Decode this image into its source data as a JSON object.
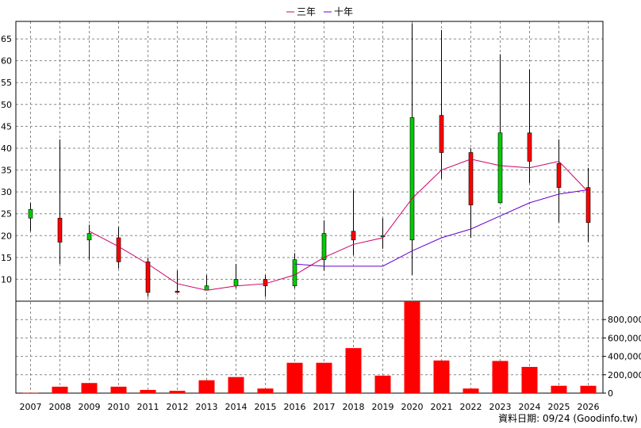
{
  "legend": [
    {
      "label": "三年",
      "color": "#cc0066"
    },
    {
      "label": "十年",
      "color": "#6600cc"
    }
  ],
  "footer": "資料日期: 09/24 (Goodinfo.tw)",
  "colors": {
    "up": "#00cc00",
    "down": "#ff0000",
    "volume": "#ff0000",
    "grid": "#888888"
  },
  "chart_data": {
    "type": "candlestick+bar",
    "categories": [
      "2007",
      "2008",
      "2009",
      "2010",
      "2011",
      "2012",
      "2013",
      "2014",
      "2015",
      "2016",
      "2017",
      "2018",
      "2019",
      "2020",
      "2021",
      "2022",
      "2023",
      "2024",
      "2025",
      "2026"
    ],
    "price_axis": {
      "ylim": [
        5,
        69
      ],
      "ticks": [
        10,
        15,
        20,
        25,
        30,
        35,
        40,
        45,
        50,
        55,
        60,
        65
      ],
      "grid": true
    },
    "volume_axis": {
      "ylim": [
        0,
        1000000
      ],
      "ticks": [
        0,
        200000,
        400000,
        600000,
        800000
      ],
      "tick_labels": [
        "0",
        "200,000",
        "400,000",
        "600,000",
        "800,000"
      ]
    },
    "candles": [
      {
        "year": "2007",
        "open": 24,
        "close": 26,
        "high": 27.5,
        "low": 21
      },
      {
        "year": "2008",
        "open": 24,
        "close": 18.5,
        "high": 42,
        "low": 13.5
      },
      {
        "year": "2009",
        "open": 19,
        "close": 20.5,
        "high": 22.5,
        "low": 14.5
      },
      {
        "year": "2010",
        "open": 19.5,
        "close": 14,
        "high": 22,
        "low": 12.5
      },
      {
        "year": "2011",
        "open": 14,
        "close": 7,
        "high": 15,
        "low": 6
      },
      {
        "year": "2012",
        "open": 7.3,
        "close": 7,
        "high": 12,
        "low": 7
      },
      {
        "year": "2013",
        "open": 7.5,
        "close": 8.5,
        "high": 11,
        "low": 7.5
      },
      {
        "year": "2014",
        "open": 8.5,
        "close": 10,
        "high": 13.5,
        "low": 8
      },
      {
        "year": "2015",
        "open": 10,
        "close": 8.5,
        "high": 11,
        "low": 6
      },
      {
        "year": "2016",
        "open": 8.5,
        "close": 14.5,
        "high": 16,
        "low": 8
      },
      {
        "year": "2017",
        "open": 14.5,
        "close": 20.5,
        "high": 23.5,
        "low": 12
      },
      {
        "year": "2018",
        "open": 21,
        "close": 19,
        "high": 30.5,
        "low": 15.5
      },
      {
        "year": "2019",
        "open": 20,
        "close": 20,
        "high": 24,
        "low": 17
      },
      {
        "year": "2020",
        "open": 19,
        "close": 47,
        "high": 68.5,
        "low": 11
      },
      {
        "year": "2021",
        "open": 47.5,
        "close": 39,
        "high": 67,
        "low": 33
      },
      {
        "year": "2022",
        "open": 39,
        "close": 27,
        "high": 40,
        "low": 19.5
      },
      {
        "year": "2023",
        "open": 27.5,
        "close": 43.5,
        "high": 61.5,
        "low": 27.5
      },
      {
        "year": "2024",
        "open": 43.5,
        "close": 37,
        "high": 58,
        "low": 32
      },
      {
        "year": "2025",
        "open": 36.5,
        "close": 31,
        "high": 42,
        "low": 23
      },
      {
        "year": "2026",
        "open": 31,
        "close": 23,
        "high": 35.5,
        "low": 18.5
      }
    ],
    "series": [
      {
        "name": "三年",
        "color": "#cc0066",
        "values": [
          null,
          null,
          21,
          17.5,
          13.5,
          9,
          7.5,
          8.5,
          9,
          11,
          15,
          18,
          19.5,
          28.5,
          35,
          37.5,
          36,
          35.5,
          37,
          30
        ]
      },
      {
        "name": "十年",
        "color": "#6600cc",
        "values": [
          null,
          null,
          null,
          null,
          null,
          null,
          null,
          null,
          null,
          13.5,
          13,
          13,
          13,
          16.5,
          19.5,
          21.5,
          24.5,
          27.5,
          29.5,
          30.5
        ]
      }
    ],
    "volume": [
      3000,
      70000,
      110000,
      70000,
      35000,
      25000,
      140000,
      175000,
      50000,
      330000,
      330000,
      490000,
      190000,
      1000000,
      355000,
      50000,
      350000,
      285000,
      80000,
      80000
    ]
  }
}
